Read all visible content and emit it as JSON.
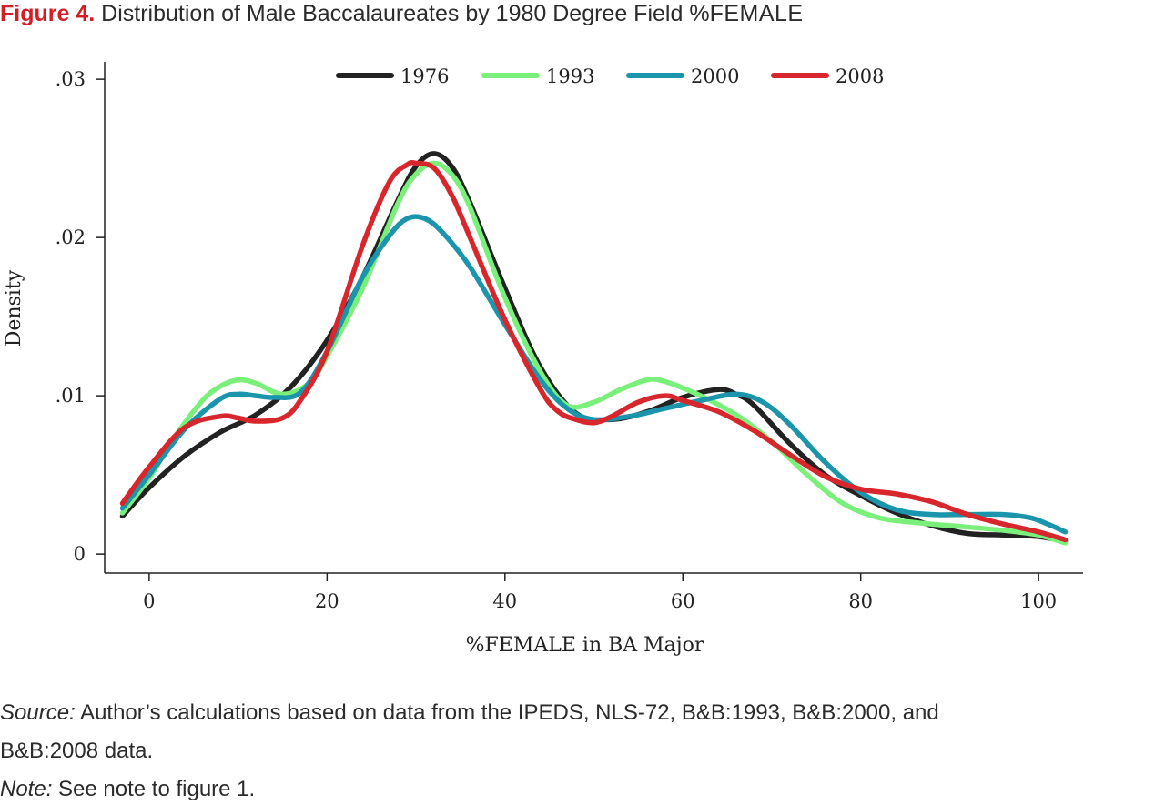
{
  "figure": {
    "label": "Figure 4.",
    "title_main": "Distribution of Male Baccalaureates by 1980 Degree Field %",
    "title_smallcaps": "FEMALE"
  },
  "caption": {
    "source_lead": "Source:",
    "source_line1": "Author’s calculations based on data from the IPEDS, NLS-72, B&B:1993, B&B:2000, and",
    "source_line2": "B&B:2008 data.",
    "note_lead": "Note:",
    "note_text": "See note to figure 1."
  },
  "chart_data": {
    "type": "line",
    "xlabel": "%FEMALE in BA Major",
    "ylabel": "Density",
    "xlim": [
      -5,
      105
    ],
    "ylim": [
      -0.0012,
      0.0311
    ],
    "xticks": [
      0,
      20,
      40,
      60,
      80,
      100
    ],
    "xtick_labels": [
      "0",
      "20",
      "40",
      "60",
      "80",
      "100"
    ],
    "yticks": [
      0,
      0.01,
      0.02,
      0.03
    ],
    "ytick_labels": [
      "0",
      ".01",
      ".02",
      ".03"
    ],
    "grid": false,
    "legend_position": "top-center",
    "series": [
      {
        "name": "1976",
        "color": "#222222",
        "x": [
          -3,
          0,
          4,
          8,
          12,
          16,
          20,
          24,
          28,
          30,
          32,
          34,
          36,
          40,
          44,
          48,
          52,
          56,
          60,
          64,
          66,
          68,
          72,
          76,
          80,
          84,
          88,
          92,
          96,
          100,
          103
        ],
        "y": [
          0.0024,
          0.0042,
          0.0062,
          0.0077,
          0.0088,
          0.0106,
          0.0135,
          0.0175,
          0.0224,
          0.0245,
          0.0253,
          0.0245,
          0.0223,
          0.0168,
          0.0118,
          0.0089,
          0.0085,
          0.009,
          0.0099,
          0.0104,
          0.0101,
          0.0094,
          0.007,
          0.005,
          0.0037,
          0.0026,
          0.0018,
          0.0013,
          0.0012,
          0.0011,
          0.0008
        ]
      },
      {
        "name": "1993",
        "color": "#7af07a",
        "x": [
          -3,
          0,
          3,
          6,
          8,
          10,
          12,
          15,
          18,
          20,
          24,
          28,
          30,
          32,
          34,
          36,
          40,
          44,
          47,
          50,
          53,
          56,
          58,
          62,
          66,
          70,
          74,
          78,
          82,
          86,
          90,
          96,
          100,
          103
        ],
        "y": [
          0.0026,
          0.0048,
          0.0075,
          0.0097,
          0.0106,
          0.011,
          0.0108,
          0.0101,
          0.0108,
          0.0125,
          0.0168,
          0.0222,
          0.024,
          0.0247,
          0.024,
          0.022,
          0.0162,
          0.0115,
          0.0094,
          0.0096,
          0.0104,
          0.011,
          0.0109,
          0.01,
          0.0088,
          0.0071,
          0.005,
          0.0032,
          0.0023,
          0.002,
          0.0018,
          0.0015,
          0.0012,
          0.0007
        ]
      },
      {
        "name": "2000",
        "color": "#1a95ab",
        "x": [
          -3,
          0,
          4,
          8,
          10,
          12,
          14,
          17,
          20,
          24,
          27,
          29,
          31,
          33,
          36,
          40,
          44,
          47,
          50,
          54,
          58,
          62,
          66,
          69,
          72,
          76,
          80,
          84,
          88,
          92,
          96,
          99,
          101,
          103
        ],
        "y": [
          0.0029,
          0.005,
          0.0079,
          0.0098,
          0.0101,
          0.01,
          0.0099,
          0.0102,
          0.0128,
          0.0175,
          0.0201,
          0.0212,
          0.0212,
          0.0203,
          0.0182,
          0.0145,
          0.011,
          0.0092,
          0.0085,
          0.0087,
          0.0092,
          0.0097,
          0.0101,
          0.0096,
          0.0082,
          0.0058,
          0.0039,
          0.0028,
          0.0025,
          0.0025,
          0.0025,
          0.0023,
          0.0019,
          0.0014
        ]
      },
      {
        "name": "2008",
        "color": "#d7262c",
        "x": [
          -3,
          0,
          4,
          8,
          10,
          12,
          15,
          17,
          20,
          24,
          27,
          29,
          30,
          32,
          34,
          36,
          40,
          44,
          46,
          48,
          50,
          52,
          55,
          58,
          60,
          64,
          68,
          72,
          76,
          80,
          84,
          88,
          92,
          96,
          100,
          103
        ],
        "y": [
          0.0032,
          0.0055,
          0.008,
          0.0087,
          0.0086,
          0.0084,
          0.0086,
          0.0097,
          0.0128,
          0.0195,
          0.0235,
          0.0246,
          0.0247,
          0.0244,
          0.0227,
          0.0201,
          0.0148,
          0.0104,
          0.009,
          0.0085,
          0.0083,
          0.0087,
          0.0096,
          0.01,
          0.0097,
          0.009,
          0.0078,
          0.0063,
          0.0049,
          0.0041,
          0.0038,
          0.0033,
          0.0025,
          0.0019,
          0.0014,
          0.0009
        ]
      }
    ]
  }
}
